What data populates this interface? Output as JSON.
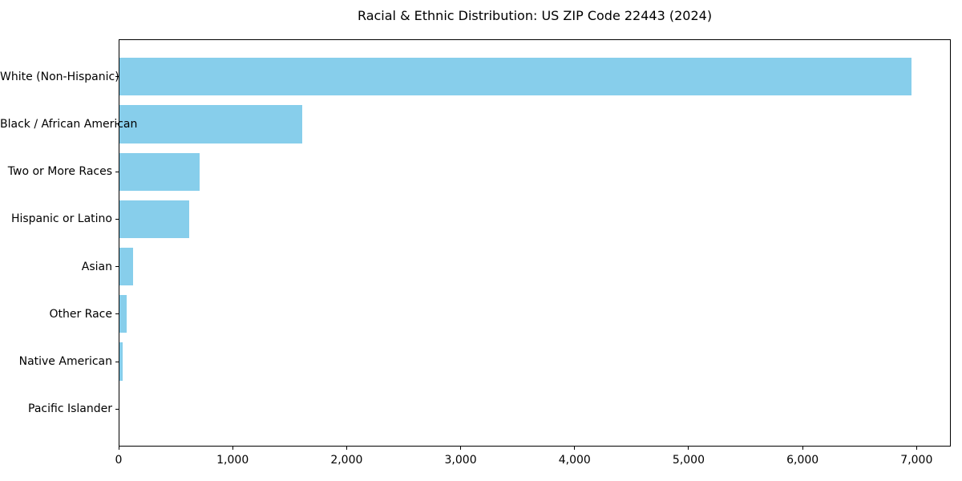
{
  "figure": {
    "background": "#ffffff",
    "spine_color": "#000000",
    "text_color": "#000000"
  },
  "chart_data": {
    "type": "bar",
    "orientation": "horizontal",
    "title": "Racial & Ethnic Distribution: US ZIP Code 22443 (2024)",
    "xlabel": "",
    "ylabel": "",
    "grid": false,
    "legend": null,
    "bar_color": "#87CEEB",
    "categories": [
      "White (Non-Hispanic)",
      "Black / African American",
      "Two or More Races",
      "Hispanic or Latino",
      "Asian",
      "Other Race",
      "Native American",
      "Pacific Islander"
    ],
    "values": [
      6950,
      1605,
      705,
      610,
      120,
      60,
      25,
      0
    ],
    "xlim": [
      0,
      7300
    ],
    "xticks": [
      {
        "value": 0,
        "label": "0"
      },
      {
        "value": 1000,
        "label": "1,000"
      },
      {
        "value": 2000,
        "label": "2,000"
      },
      {
        "value": 3000,
        "label": "3,000"
      },
      {
        "value": 4000,
        "label": "4,000"
      },
      {
        "value": 5000,
        "label": "5,000"
      },
      {
        "value": 6000,
        "label": "6,000"
      },
      {
        "value": 7000,
        "label": "7,000"
      }
    ]
  }
}
